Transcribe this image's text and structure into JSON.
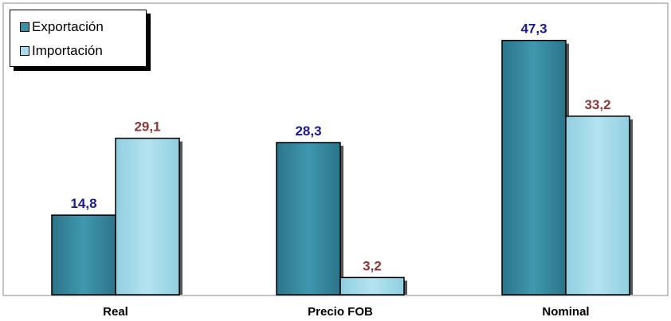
{
  "chart_data": {
    "type": "bar",
    "title": "",
    "xlabel": "",
    "ylabel": "",
    "categories": [
      "Real",
      "Precio FOB",
      "Nominal"
    ],
    "series": [
      {
        "name": "Exportación",
        "values": [
          14.8,
          28.3,
          47.3
        ],
        "labels": [
          "14,8",
          "28,3",
          "47,3"
        ],
        "color": "#3a8fa6",
        "label_color": "#1a1a8c"
      },
      {
        "name": "Importación",
        "values": [
          29.1,
          3.2,
          33.2
        ],
        "labels": [
          "29,1",
          "3,2",
          "33,2"
        ],
        "color": "#a6dcec",
        "label_color": "#8b3a3a"
      }
    ],
    "ylim": [
      0,
      50
    ],
    "grid": false,
    "legend": "top-left"
  }
}
